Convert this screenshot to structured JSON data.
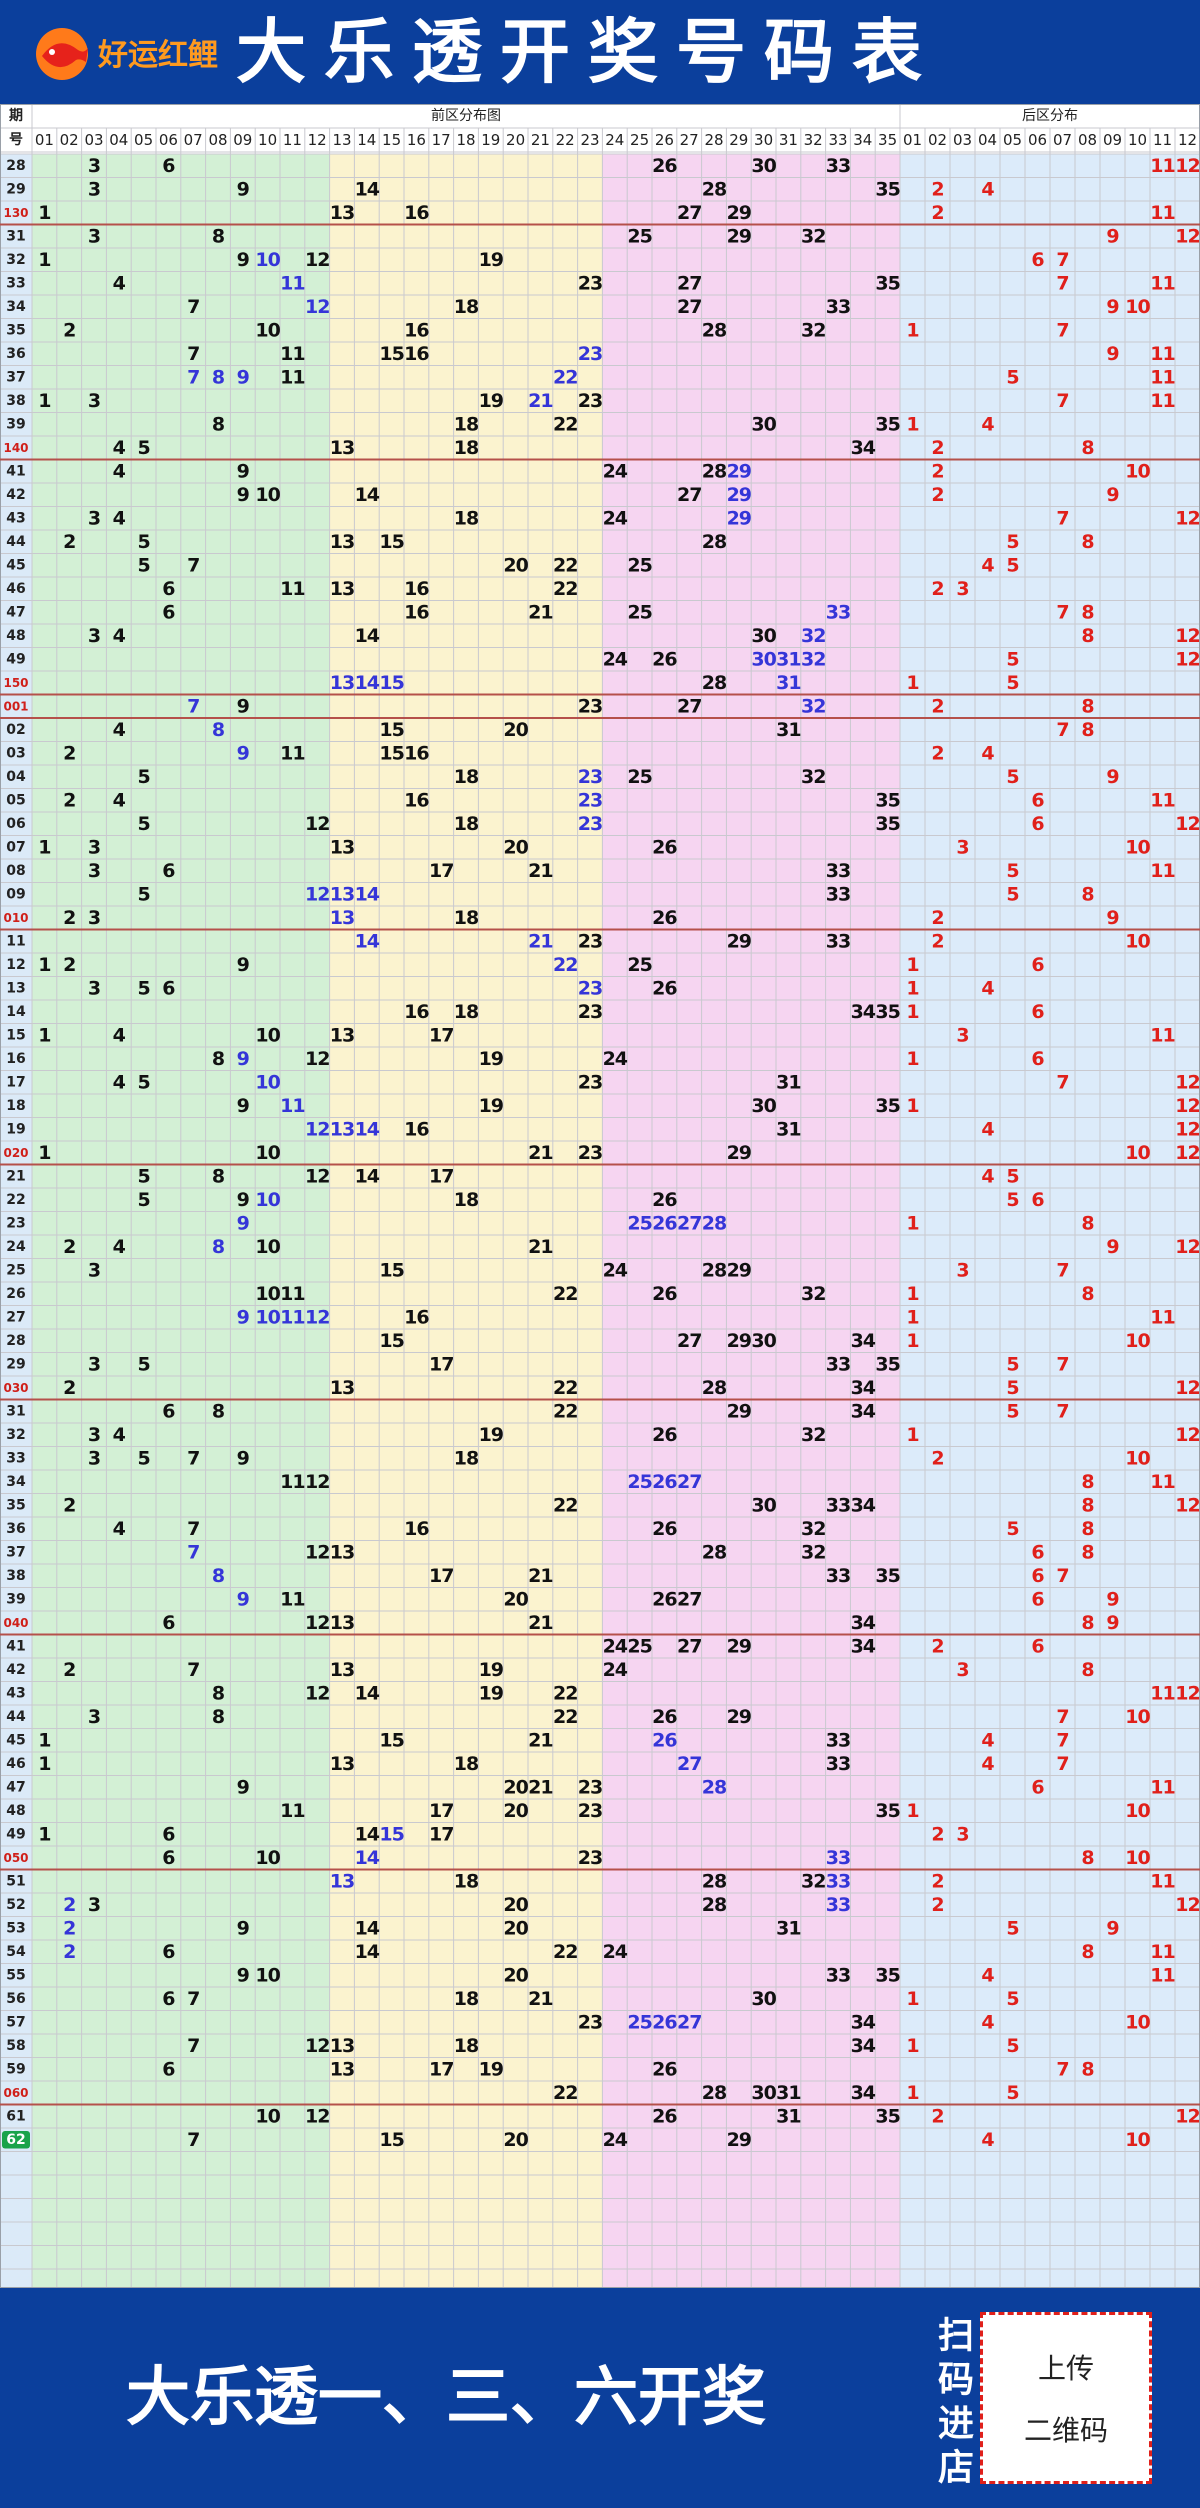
{
  "header": {
    "brand": "好运红鲤",
    "title": "大乐透开奖号码表"
  },
  "table": {
    "issue_header": [
      "期",
      "号"
    ],
    "front_title": "前区分布图",
    "back_title": "后区分布",
    "front_columns": [
      "01",
      "02",
      "03",
      "04",
      "05",
      "06",
      "07",
      "08",
      "09",
      "10",
      "11",
      "12",
      "13",
      "14",
      "15",
      "16",
      "17",
      "18",
      "19",
      "20",
      "21",
      "22",
      "23",
      "24",
      "25",
      "26",
      "27",
      "28",
      "29",
      "30",
      "31",
      "32",
      "33",
      "34",
      "35"
    ],
    "back_columns": [
      "01",
      "02",
      "03",
      "04",
      "05",
      "06",
      "07",
      "08",
      "09",
      "10",
      "11",
      "12"
    ],
    "rows": [
      {
        "issue": "28",
        "front": [
          3,
          6,
          26,
          30,
          33
        ],
        "back": [
          11,
          12
        ]
      },
      {
        "issue": "29",
        "front": [
          3,
          9,
          14,
          28,
          35
        ],
        "back": [
          2,
          4
        ]
      },
      {
        "issue": "130",
        "front": [
          1,
          13,
          16,
          27,
          29
        ],
        "back": [
          2,
          11
        ]
      },
      {
        "issue": "31",
        "front": [
          3,
          8,
          25,
          29,
          32
        ],
        "back": [
          9,
          12
        ]
      },
      {
        "issue": "32",
        "front": [
          1,
          9,
          10,
          12,
          19
        ],
        "back": [
          6,
          7
        ],
        "highlight": [
          10
        ]
      },
      {
        "issue": "33",
        "front": [
          4,
          11,
          23,
          27,
          35
        ],
        "back": [
          7,
          11
        ],
        "highlight": [
          11
        ]
      },
      {
        "issue": "34",
        "front": [
          7,
          12,
          18,
          27,
          33
        ],
        "back": [
          9,
          10
        ],
        "highlight": [
          12
        ]
      },
      {
        "issue": "35",
        "front": [
          2,
          10,
          16,
          28,
          32
        ],
        "back": [
          1,
          7
        ]
      },
      {
        "issue": "36",
        "front": [
          7,
          11,
          15,
          16,
          23
        ],
        "back": [
          9,
          11
        ],
        "highlight": [
          23
        ]
      },
      {
        "issue": "37",
        "front": [
          7,
          8,
          9,
          11,
          22
        ],
        "back": [
          5,
          11
        ],
        "highlight": [
          7,
          8,
          9,
          22
        ]
      },
      {
        "issue": "38",
        "front": [
          1,
          3,
          19,
          21,
          23
        ],
        "back": [
          7,
          11
        ],
        "highlight": [
          21
        ]
      },
      {
        "issue": "39",
        "front": [
          8,
          18,
          22,
          30,
          35
        ],
        "back": [
          1,
          4
        ]
      },
      {
        "issue": "140",
        "front": [
          4,
          5,
          13,
          18,
          34
        ],
        "back": [
          2,
          8
        ]
      },
      {
        "issue": "41",
        "front": [
          4,
          9,
          24,
          28,
          29
        ],
        "back": [
          2,
          10
        ],
        "highlight": [
          29
        ]
      },
      {
        "issue": "42",
        "front": [
          9,
          10,
          14,
          27,
          29
        ],
        "back": [
          2,
          9
        ],
        "highlight": [
          29
        ]
      },
      {
        "issue": "43",
        "front": [
          3,
          4,
          18,
          24,
          29
        ],
        "back": [
          7,
          12
        ],
        "highlight": [
          29
        ]
      },
      {
        "issue": "44",
        "front": [
          2,
          5,
          13,
          15,
          28
        ],
        "back": [
          5,
          8
        ]
      },
      {
        "issue": "45",
        "front": [
          5,
          7,
          20,
          22,
          25
        ],
        "back": [
          4,
          5
        ]
      },
      {
        "issue": "46",
        "front": [
          6,
          11,
          13,
          16,
          22
        ],
        "back": [
          2,
          3
        ]
      },
      {
        "issue": "47",
        "front": [
          6,
          16,
          21,
          25,
          33
        ],
        "back": [
          7,
          8
        ],
        "highlight": [
          33
        ]
      },
      {
        "issue": "48",
        "front": [
          3,
          4,
          14,
          30,
          32
        ],
        "back": [
          8,
          12
        ],
        "highlight": [
          32
        ]
      },
      {
        "issue": "49",
        "front": [
          24,
          26,
          30,
          31,
          32
        ],
        "back": [
          5,
          12
        ],
        "highlight": [
          30,
          31,
          32
        ]
      },
      {
        "issue": "150",
        "front": [
          13,
          14,
          15,
          28,
          31
        ],
        "back": [
          1,
          5
        ],
        "highlight": [
          13,
          14,
          15,
          31
        ]
      },
      {
        "issue": "001",
        "front": [
          7,
          9,
          23,
          27,
          32
        ],
        "back": [
          2,
          8
        ],
        "highlight": [
          7,
          32
        ]
      },
      {
        "issue": "02",
        "front": [
          4,
          8,
          15,
          20,
          31
        ],
        "back": [
          7,
          8
        ],
        "highlight": [
          8
        ]
      },
      {
        "issue": "03",
        "front": [
          2,
          9,
          11,
          15,
          16
        ],
        "back": [
          2,
          4
        ],
        "highlight": [
          9
        ]
      },
      {
        "issue": "04",
        "front": [
          5,
          18,
          23,
          25,
          32
        ],
        "back": [
          5,
          9
        ],
        "highlight": [
          23
        ]
      },
      {
        "issue": "05",
        "front": [
          2,
          4,
          16,
          23,
          35
        ],
        "back": [
          6,
          11
        ],
        "highlight": [
          23
        ]
      },
      {
        "issue": "06",
        "front": [
          5,
          12,
          18,
          23,
          35
        ],
        "back": [
          6,
          12
        ],
        "highlight": [
          23
        ]
      },
      {
        "issue": "07",
        "front": [
          1,
          3,
          13,
          20,
          26
        ],
        "back": [
          3,
          10
        ]
      },
      {
        "issue": "08",
        "front": [
          3,
          6,
          17,
          21,
          33
        ],
        "back": [
          5,
          11
        ]
      },
      {
        "issue": "09",
        "front": [
          5,
          12,
          13,
          14,
          33
        ],
        "back": [
          5,
          8
        ],
        "highlight": [
          12,
          13,
          14
        ]
      },
      {
        "issue": "010",
        "front": [
          2,
          3,
          13,
          18,
          26
        ],
        "back": [
          2,
          9
        ],
        "highlight": [
          13
        ]
      },
      {
        "issue": "11",
        "front": [
          14,
          21,
          23,
          29,
          33
        ],
        "back": [
          2,
          10
        ],
        "highlight": [
          14,
          21
        ]
      },
      {
        "issue": "12",
        "front": [
          1,
          2,
          9,
          22,
          25
        ],
        "back": [
          1,
          6
        ],
        "highlight": [
          22
        ]
      },
      {
        "issue": "13",
        "front": [
          3,
          5,
          6,
          23,
          26
        ],
        "back": [
          1,
          4
        ],
        "highlight": [
          23
        ]
      },
      {
        "issue": "14",
        "front": [
          16,
          18,
          23,
          34,
          35
        ],
        "back": [
          1,
          6
        ]
      },
      {
        "issue": "15",
        "front": [
          1,
          4,
          10,
          13,
          17
        ],
        "back": [
          3,
          11
        ]
      },
      {
        "issue": "16",
        "front": [
          8,
          9,
          12,
          19,
          24
        ],
        "back": [
          1,
          6
        ],
        "highlight": [
          9
        ]
      },
      {
        "issue": "17",
        "front": [
          4,
          5,
          10,
          23,
          31
        ],
        "back": [
          7,
          12
        ],
        "highlight": [
          10
        ]
      },
      {
        "issue": "18",
        "front": [
          9,
          11,
          19,
          30,
          35
        ],
        "back": [
          1,
          12
        ],
        "highlight": [
          11
        ]
      },
      {
        "issue": "19",
        "front": [
          12,
          13,
          14,
          16,
          31
        ],
        "back": [
          4,
          12
        ],
        "highlight": [
          12,
          13,
          14
        ]
      },
      {
        "issue": "020",
        "front": [
          1,
          10,
          21,
          23,
          29
        ],
        "back": [
          10,
          12
        ]
      },
      {
        "issue": "21",
        "front": [
          5,
          8,
          12,
          14,
          17
        ],
        "back": [
          4,
          5
        ]
      },
      {
        "issue": "22",
        "front": [
          5,
          9,
          10,
          18,
          26
        ],
        "back": [
          5,
          6
        ],
        "highlight": [
          10
        ]
      },
      {
        "issue": "23",
        "front": [
          9,
          25,
          26,
          27,
          28
        ],
        "back": [
          1,
          8
        ],
        "highlight": [
          9,
          25,
          26,
          27,
          28
        ]
      },
      {
        "issue": "24",
        "front": [
          2,
          4,
          8,
          10,
          21
        ],
        "back": [
          9,
          12
        ],
        "highlight": [
          8
        ]
      },
      {
        "issue": "25",
        "front": [
          3,
          15,
          24,
          28,
          29
        ],
        "back": [
          3,
          7
        ]
      },
      {
        "issue": "26",
        "front": [
          10,
          11,
          22,
          26,
          32
        ],
        "back": [
          1,
          8
        ]
      },
      {
        "issue": "27",
        "front": [
          9,
          10,
          11,
          12,
          16
        ],
        "back": [
          1,
          11
        ],
        "highlight": [
          9,
          10,
          11,
          12
        ]
      },
      {
        "issue": "28",
        "front": [
          15,
          27,
          29,
          30,
          34
        ],
        "back": [
          1,
          10
        ]
      },
      {
        "issue": "29",
        "front": [
          3,
          5,
          17,
          33,
          35
        ],
        "back": [
          5,
          7
        ]
      },
      {
        "issue": "030",
        "front": [
          2,
          13,
          22,
          28,
          34
        ],
        "back": [
          5,
          12
        ]
      },
      {
        "issue": "31",
        "front": [
          6,
          8,
          22,
          29,
          34
        ],
        "back": [
          5,
          7
        ]
      },
      {
        "issue": "32",
        "front": [
          3,
          4,
          19,
          26,
          32
        ],
        "back": [
          1,
          12
        ]
      },
      {
        "issue": "33",
        "front": [
          3,
          5,
          7,
          9,
          18
        ],
        "back": [
          2,
          10
        ]
      },
      {
        "issue": "34",
        "front": [
          11,
          12,
          25,
          26,
          27
        ],
        "back": [
          8,
          11
        ],
        "highlight": [
          25,
          26,
          27
        ]
      },
      {
        "issue": "35",
        "front": [
          2,
          22,
          30,
          33,
          34
        ],
        "back": [
          8,
          12
        ]
      },
      {
        "issue": "36",
        "front": [
          4,
          7,
          16,
          26,
          32
        ],
        "back": [
          5,
          8
        ]
      },
      {
        "issue": "37",
        "front": [
          7,
          12,
          13,
          28,
          32
        ],
        "back": [
          6,
          8
        ],
        "highlight": [
          7
        ]
      },
      {
        "issue": "38",
        "front": [
          8,
          17,
          21,
          33,
          35
        ],
        "back": [
          6,
          7
        ],
        "highlight": [
          8
        ]
      },
      {
        "issue": "39",
        "front": [
          9,
          11,
          20,
          26,
          27
        ],
        "back": [
          6,
          9
        ],
        "highlight": [
          9
        ]
      },
      {
        "issue": "040",
        "front": [
          6,
          12,
          13,
          21,
          34
        ],
        "back": [
          8,
          9
        ]
      },
      {
        "issue": "41",
        "front": [
          24,
          25,
          27,
          29,
          34
        ],
        "back": [
          2,
          6
        ]
      },
      {
        "issue": "42",
        "front": [
          2,
          7,
          13,
          19,
          24
        ],
        "back": [
          3,
          8
        ]
      },
      {
        "issue": "43",
        "front": [
          8,
          12,
          14,
          19,
          22
        ],
        "back": [
          11,
          12
        ]
      },
      {
        "issue": "44",
        "front": [
          3,
          8,
          22,
          26,
          29
        ],
        "back": [
          7,
          10
        ]
      },
      {
        "issue": "45",
        "front": [
          1,
          15,
          21,
          26,
          33
        ],
        "back": [
          4,
          7
        ],
        "highlight": [
          26
        ]
      },
      {
        "issue": "46",
        "front": [
          1,
          13,
          18,
          27,
          33
        ],
        "back": [
          4,
          7
        ],
        "highlight": [
          27
        ]
      },
      {
        "issue": "47",
        "front": [
          9,
          20,
          21,
          23,
          28
        ],
        "back": [
          6,
          11
        ],
        "highlight": [
          28
        ]
      },
      {
        "issue": "48",
        "front": [
          11,
          17,
          20,
          23,
          35
        ],
        "back": [
          1,
          10
        ]
      },
      {
        "issue": "49",
        "front": [
          1,
          6,
          14,
          15,
          17
        ],
        "back": [
          2,
          3
        ],
        "highlight": [
          15
        ]
      },
      {
        "issue": "050",
        "front": [
          6,
          10,
          14,
          23,
          33
        ],
        "back": [
          8,
          10
        ],
        "highlight": [
          14,
          33
        ]
      },
      {
        "issue": "51",
        "front": [
          13,
          18,
          28,
          32,
          33
        ],
        "back": [
          2,
          11
        ],
        "highlight": [
          13,
          33
        ]
      },
      {
        "issue": "52",
        "front": [
          2,
          3,
          20,
          28,
          33
        ],
        "back": [
          2,
          12
        ],
        "highlight": [
          2,
          33
        ]
      },
      {
        "issue": "53",
        "front": [
          2,
          9,
          14,
          20,
          31
        ],
        "back": [
          5,
          9
        ],
        "highlight": [
          2
        ]
      },
      {
        "issue": "54",
        "front": [
          2,
          6,
          14,
          22,
          24
        ],
        "back": [
          8,
          11
        ],
        "highlight": [
          2
        ]
      },
      {
        "issue": "55",
        "front": [
          9,
          10,
          20,
          33,
          35
        ],
        "back": [
          4,
          11
        ]
      },
      {
        "issue": "56",
        "front": [
          6,
          7,
          18,
          21,
          30
        ],
        "back": [
          1,
          5
        ]
      },
      {
        "issue": "57",
        "front": [
          23,
          25,
          26,
          27,
          34
        ],
        "back": [
          4,
          10
        ],
        "highlight": [
          25,
          26,
          27
        ]
      },
      {
        "issue": "58",
        "front": [
          7,
          12,
          13,
          18,
          34
        ],
        "back": [
          1,
          5
        ]
      },
      {
        "issue": "59",
        "front": [
          6,
          13,
          17,
          19,
          26
        ],
        "back": [
          7,
          8
        ]
      },
      {
        "issue": "060",
        "front": [
          22,
          28,
          30,
          31,
          34
        ],
        "back": [
          1,
          5
        ]
      },
      {
        "issue": "61",
        "front": [
          10,
          12,
          26,
          31,
          35
        ],
        "back": [
          2,
          12
        ]
      },
      {
        "issue": "62",
        "front": [
          7,
          15,
          20,
          24,
          29
        ],
        "back": [
          4,
          10
        ]
      }
    ]
  },
  "footer": {
    "slogan": "大乐透一、三、六开奖",
    "scan": "扫码进店",
    "qr_text": [
      "上传",
      "二维码"
    ]
  }
}
